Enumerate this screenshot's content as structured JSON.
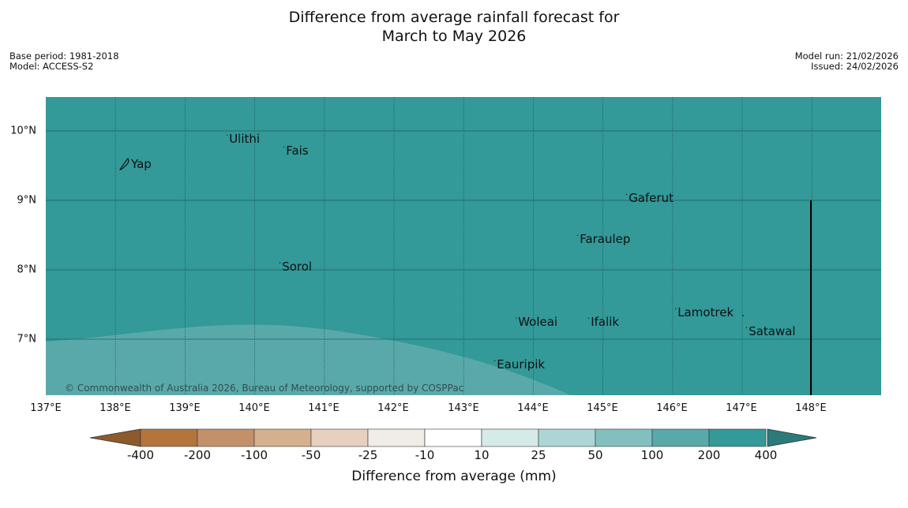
{
  "title_line1": "Difference from average rainfall forecast for",
  "title_line2": "March to May 2026",
  "meta_left": [
    "Base period: 1981-2018",
    "Model: ACCESS-S2"
  ],
  "meta_right": [
    "Model run: 21/02/2026",
    "Issued: 24/02/2026"
  ],
  "colors": {
    "main_fill": "#339999",
    "low_band": "#5aa9aa",
    "grid": "#1f5f5f"
  },
  "axes": {
    "lat_labels": [
      "10°N",
      "9°N",
      "8°N",
      "7°N"
    ],
    "lon_labels": [
      "137°E",
      "138°E",
      "139°E",
      "140°E",
      "141°E",
      "142°E",
      "143°E",
      "144°E",
      "145°E",
      "146°E",
      "147°E",
      "148°E"
    ]
  },
  "places": [
    {
      "name": "Yap",
      "lon": 138.3,
      "lat": 9.5
    },
    {
      "name": "Ulithi",
      "lon": 139.73,
      "lat": 9.9
    },
    {
      "name": "Fais",
      "lon": 140.43,
      "lat": 9.75
    },
    {
      "name": "Gaferut",
      "lon": 145.38,
      "lat": 9.05
    },
    {
      "name": "Faraulep",
      "lon": 144.67,
      "lat": 8.48
    },
    {
      "name": "Sorol",
      "lon": 140.38,
      "lat": 8.05
    },
    {
      "name": "Woleai",
      "lon": 143.87,
      "lat": 7.3
    },
    {
      "name": "Ifalik",
      "lon": 144.78,
      "lat": 7.3
    },
    {
      "name": "Lamotrek",
      "lon": 146.03,
      "lat": 7.42
    },
    {
      "name": "Satawal",
      "lon": 147.03,
      "lat": 7.15
    },
    {
      "name": "Eauripik",
      "lon": 143.47,
      "lat": 6.68
    }
  ],
  "copyright": "© Commonwealth of Australia 2026, Bureau of Meteorology, supported by COSPPac",
  "colorbar": {
    "title": "Difference from average (mm)",
    "labels": [
      "-400",
      "-200",
      "-100",
      "-50",
      "-25",
      "-10",
      "10",
      "25",
      "50",
      "100",
      "200",
      "400"
    ],
    "colors": [
      "#b2753b",
      "#c2916a",
      "#d5b08e",
      "#e6d1c0",
      "#f0ede7",
      "#ffffff",
      "#d5ebea",
      "#acd6d6",
      "#81c0bf",
      "#58aaaa",
      "#339999"
    ],
    "extend_low": "#8c5a2b",
    "extend_high": "#2a7b7a"
  }
}
